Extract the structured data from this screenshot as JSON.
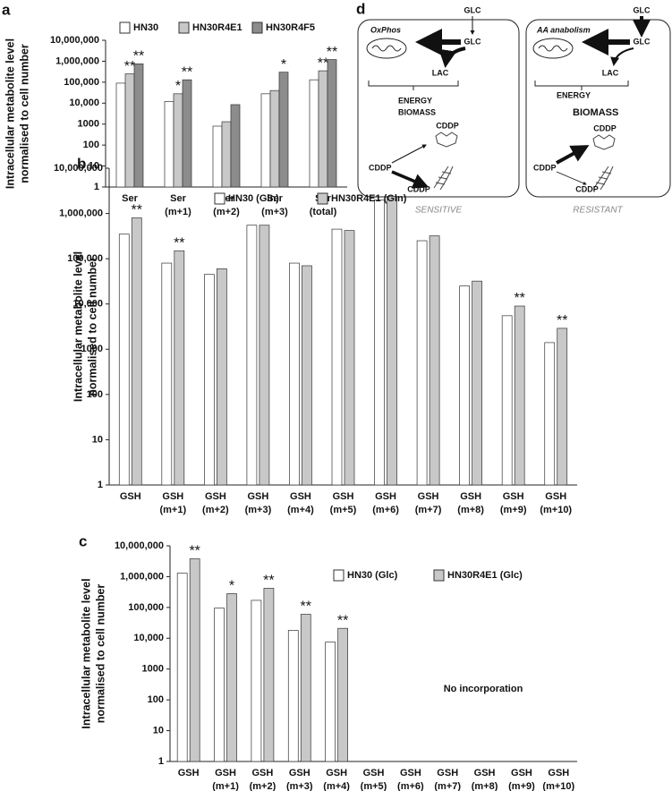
{
  "chart_data": [
    {
      "type": "bar",
      "panel_label": "a",
      "y_label": [
        "Intracellular metabolite level",
        "normalised to cell number"
      ],
      "categories": [
        [
          "Ser"
        ],
        [
          "Ser",
          "(m+1)"
        ],
        [
          "Ser",
          "(m+2)"
        ],
        [
          "Ser",
          "(m+3)"
        ],
        [
          "Ser",
          "(total)"
        ]
      ],
      "series": [
        {
          "name": "HN30",
          "color": "#ffffff",
          "values": [
            90000,
            12000,
            800,
            28000,
            130000
          ],
          "significance": [
            null,
            null,
            null,
            null,
            null
          ]
        },
        {
          "name": "HN30R4E1",
          "color": "#c8c8c8",
          "values": [
            250000,
            28000,
            1300,
            40000,
            350000
          ],
          "significance": [
            "**",
            "*",
            null,
            null,
            "**"
          ]
        },
        {
          "name": "HN30R4F5",
          "color": "#8c8c8c",
          "values": [
            750000,
            130000,
            8500,
            300000,
            1200000
          ],
          "significance": [
            "**",
            "**",
            null,
            "*",
            "**"
          ]
        }
      ],
      "log_scale": true,
      "ylim": [
        1,
        10000000
      ],
      "yticks": [
        1,
        10,
        100,
        1000,
        {
          "value": 10000,
          "label": "10,000"
        },
        {
          "value": 100000,
          "label": "100,000"
        },
        {
          "value": 1000000,
          "label": "1,000,000"
        },
        {
          "value": 10000000,
          "label": "10,000,000"
        }
      ]
    },
    {
      "type": "bar",
      "panel_label": "b",
      "y_label": [
        "Intracellular metabolite level",
        "normalised to cell number"
      ],
      "categories": [
        [
          "GSH"
        ],
        [
          "GSH",
          "(m+1)"
        ],
        [
          "GSH",
          "(m+2)"
        ],
        [
          "GSH",
          "(m+3)"
        ],
        [
          "GSH",
          "(m+4)"
        ],
        [
          "GSH",
          "(m+5)"
        ],
        [
          "GSH",
          "(m+6)"
        ],
        [
          "GSH",
          "(m+7)"
        ],
        [
          "GSH",
          "(m+8)"
        ],
        [
          "GSH",
          "(m+9)"
        ],
        [
          "GSH",
          "(m+10)"
        ]
      ],
      "series": [
        {
          "name": "HN30 (Gln)",
          "color": "#ffffff",
          "values": [
            350000,
            80000,
            45000,
            550000,
            80000,
            450000,
            2000000,
            250000,
            25000,
            5500,
            1400
          ],
          "significance": [
            null,
            null,
            null,
            null,
            null,
            null,
            null,
            null,
            null,
            null,
            null
          ]
        },
        {
          "name": "HN30R4E1 (Gln)",
          "color": "#c8c8c8",
          "values": [
            800000,
            150000,
            60000,
            550000,
            70000,
            420000,
            2400000,
            320000,
            32000,
            9000,
            2900
          ],
          "significance": [
            "**",
            "**",
            null,
            null,
            null,
            null,
            null,
            null,
            null,
            "**",
            "**"
          ]
        }
      ],
      "log_scale": true,
      "ylim": [
        1,
        10000000
      ],
      "yticks": [
        1,
        10,
        100,
        1000,
        {
          "value": 10000,
          "label": "10,000"
        },
        {
          "value": 100000,
          "label": "100,000"
        },
        {
          "value": 1000000,
          "label": "1,000,000"
        },
        {
          "value": 10000000,
          "label": "10,000,000"
        }
      ]
    },
    {
      "type": "bar",
      "panel_label": "c",
      "y_label": [
        "Intracellular metabolite level",
        "normalised to cell number"
      ],
      "annotation": "No incorporation",
      "categories": [
        [
          "GSH"
        ],
        [
          "GSH",
          "(m+1)"
        ],
        [
          "GSH",
          "(m+2)"
        ],
        [
          "GSH",
          "(m+3)"
        ],
        [
          "GSH",
          "(m+4)"
        ],
        [
          "GSH",
          "(m+5)"
        ],
        [
          "GSH",
          "(m+6)"
        ],
        [
          "GSH",
          "(m+7)"
        ],
        [
          "GSH",
          "(m+8)"
        ],
        [
          "GSH",
          "(m+9)"
        ],
        [
          "GSH",
          "(m+10)"
        ]
      ],
      "series": [
        {
          "name": "HN30 (Glc)",
          "color": "#ffffff",
          "values": [
            1300000,
            95000,
            170000,
            18000,
            7500,
            null,
            null,
            null,
            null,
            null,
            null
          ],
          "significance": [
            null,
            null,
            null,
            null,
            null,
            null,
            null,
            null,
            null,
            null,
            null
          ]
        },
        {
          "name": "HN30R4E1 (Glc)",
          "color": "#c8c8c8",
          "values": [
            3800000,
            280000,
            420000,
            60000,
            21000,
            null,
            null,
            null,
            null,
            null,
            null
          ],
          "significance": [
            "**",
            "*",
            "**",
            "**",
            "**",
            null,
            null,
            null,
            null,
            null,
            null
          ]
        }
      ],
      "log_scale": true,
      "ylim": [
        1,
        10000000
      ],
      "yticks": [
        1,
        10,
        100,
        1000,
        {
          "value": 10000,
          "label": "10,000"
        },
        {
          "value": 100000,
          "label": "100,000"
        },
        {
          "value": 1000000,
          "label": "1,000,000"
        },
        {
          "value": 10000000,
          "label": "10,000,000"
        }
      ]
    }
  ],
  "diagram": {
    "panel_label": "d",
    "sensitive": {
      "pathway": "OxPhos",
      "glc_in": "GLC",
      "glc": "GLC",
      "lac": "LAC",
      "energy": "ENERGY",
      "biomass": "BIOMASS",
      "cddp_top": "CDDP",
      "cddp_left": "CDDP",
      "cddp_bottom": "CDDP",
      "caption": "SENSITIVE"
    },
    "resistant": {
      "pathway": "AA anabolism",
      "glc_in": "GLC",
      "glc": "GLC",
      "lac": "LAC",
      "energy": "ENERGY",
      "biomass": "BIOMASS",
      "cddp_top": "CDDP",
      "cddp_left": "CDDP",
      "cddp_bottom": "CDDP",
      "caption": "RESISTANT"
    }
  }
}
